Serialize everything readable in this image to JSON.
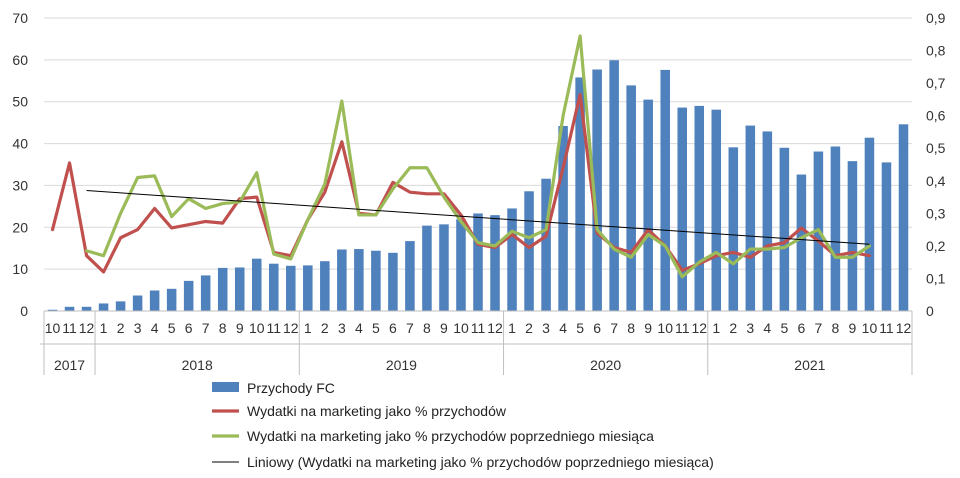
{
  "chart_data": {
    "type": "bar",
    "months": [
      "10",
      "11",
      "12",
      "1",
      "2",
      "3",
      "4",
      "5",
      "6",
      "7",
      "8",
      "9",
      "10",
      "11",
      "12",
      "1",
      "2",
      "3",
      "4",
      "5",
      "6",
      "7",
      "8",
      "9",
      "10",
      "11",
      "12",
      "1",
      "2",
      "3",
      "4",
      "5",
      "6",
      "7",
      "8",
      "9",
      "10",
      "11",
      "12",
      "1",
      "2",
      "3",
      "4",
      "5",
      "6",
      "7",
      "8",
      "9",
      "10",
      "11",
      "12"
    ],
    "years": [
      {
        "label": "2017",
        "count": 3
      },
      {
        "label": "2018",
        "count": 12
      },
      {
        "label": "2019",
        "count": 12
      },
      {
        "label": "2020",
        "count": 12
      },
      {
        "label": "2021",
        "count": 12
      }
    ],
    "y_left": {
      "min": 0,
      "max": 70,
      "ticks": [
        "0",
        "10",
        "20",
        "30",
        "40",
        "50",
        "60",
        "70"
      ]
    },
    "y_right": {
      "min": 0,
      "max": 0.9,
      "ticks": [
        "0",
        "0,1",
        "0,2",
        "0,3",
        "0,4",
        "0,5",
        "0,6",
        "0,7",
        "0,8",
        "0,9"
      ]
    },
    "grid": true,
    "legend_position": "bottom",
    "series": [
      {
        "name": "Przychody FC",
        "type": "bar",
        "axis": "left",
        "color": "#4f81bd",
        "values": [
          0.3,
          1.0,
          1.0,
          1.8,
          2.3,
          3.7,
          4.9,
          5.3,
          7.2,
          8.5,
          10.3,
          10.4,
          12.5,
          11.3,
          10.8,
          10.9,
          11.9,
          14.7,
          14.8,
          14.4,
          13.9,
          16.7,
          20.4,
          20.7,
          21.9,
          23.3,
          22.9,
          24.5,
          28.6,
          31.6,
          44.2,
          55.8,
          57.7,
          59.9,
          53.9,
          50.5,
          57.6,
          48.6,
          49.0,
          48.1,
          39.1,
          44.3,
          42.9,
          39.0,
          32.6,
          38.1,
          39.3,
          35.8,
          41.4,
          35.5,
          44.6
        ]
      },
      {
        "name": "Wydatki na marketing jako % przychodów",
        "type": "line",
        "axis": "right",
        "color": "#c0504d",
        "values": [
          0.25,
          0.455,
          0.17,
          0.12,
          0.225,
          0.25,
          0.315,
          0.255,
          0.265,
          0.275,
          0.27,
          0.345,
          0.35,
          0.18,
          0.17,
          0.28,
          0.365,
          0.52,
          0.3,
          0.295,
          0.395,
          0.365,
          0.36,
          0.36,
          0.295,
          0.205,
          0.195,
          0.235,
          0.195,
          0.23,
          0.44,
          0.665,
          0.24,
          0.195,
          0.18,
          0.25,
          0.2,
          0.125,
          0.145,
          0.17,
          0.18,
          0.165,
          0.2,
          0.21,
          0.255,
          0.215,
          0.17,
          0.18,
          0.17,
          null,
          null
        ]
      },
      {
        "name": "Wydatki na marketing jako % przychodów poprzedniego miesiąca",
        "type": "line",
        "axis": "right",
        "color": "#9bbb59",
        "values": [
          null,
          null,
          0.185,
          0.17,
          0.3,
          0.41,
          0.415,
          0.29,
          0.345,
          0.315,
          0.33,
          0.335,
          0.425,
          0.175,
          0.16,
          0.28,
          0.39,
          0.645,
          0.295,
          0.295,
          0.375,
          0.44,
          0.44,
          0.35,
          0.275,
          0.21,
          0.2,
          0.245,
          0.225,
          0.25,
          0.6,
          0.845,
          0.25,
          0.19,
          0.165,
          0.235,
          0.2,
          0.105,
          0.15,
          0.18,
          0.145,
          0.19,
          0.19,
          0.195,
          0.225,
          0.25,
          0.165,
          0.165,
          0.2,
          null,
          null
        ]
      },
      {
        "name": "Liniowy (Wydatki na marketing jako % przychodów poprzedniego miesiąca)",
        "type": "trendline",
        "axis": "right",
        "color": "#000000",
        "start": 0.37,
        "end": 0.205
      }
    ]
  }
}
